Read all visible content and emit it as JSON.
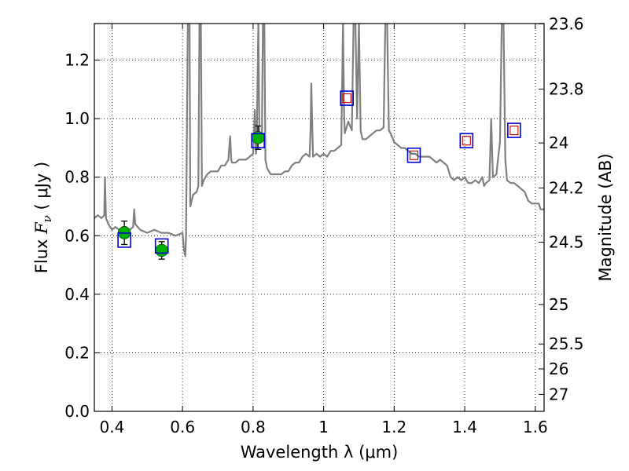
{
  "chart_data": {
    "type": "line",
    "xlabel": "Wavelength  λ (μm)",
    "ylabel_prefix": "Flux  ",
    "ylabel_math": "F",
    "ylabel_sub": "ν",
    "ylabel_suffix": "  ( μJy )",
    "ylabel_right": "Magnitude (AB)",
    "xlim": [
      0.35,
      1.625
    ],
    "ylim": [
      0.0,
      1.325
    ],
    "grid": true,
    "x_ticks": [
      0.4,
      0.6,
      0.8,
      1.0,
      1.2,
      1.4,
      1.6
    ],
    "x_tick_labels": [
      "0.4",
      "0.6",
      "0.8",
      "1",
      "1.2",
      "1.4",
      "1.6"
    ],
    "y_ticks": [
      0.0,
      0.2,
      0.4,
      0.6,
      0.8,
      1.0,
      1.2
    ],
    "y_tick_labels": [
      "0.0",
      "0.2",
      "0.4",
      "0.6",
      "0.8",
      "1.0",
      "1.2"
    ],
    "right_ticks": [
      {
        "label": "23.6",
        "flux": 1.324
      },
      {
        "label": "23.8",
        "flux": 1.101
      },
      {
        "label": "24",
        "flux": 0.917
      },
      {
        "label": "24.2",
        "flux": 0.763
      },
      {
        "label": "24.5",
        "flux": 0.578
      },
      {
        "label": "25",
        "flux": 0.365
      },
      {
        "label": "25.5",
        "flux": 0.23
      },
      {
        "label": "26",
        "flux": 0.145
      },
      {
        "label": "27",
        "flux": 0.058
      }
    ],
    "series": [
      {
        "name": "model_spectrum",
        "kind": "line",
        "color": "#808080",
        "points": [
          [
            0.35,
            0.66
          ],
          [
            0.36,
            0.67
          ],
          [
            0.37,
            0.66
          ],
          [
            0.378,
            0.67
          ],
          [
            0.38,
            0.8
          ],
          [
            0.383,
            0.66
          ],
          [
            0.39,
            0.64
          ],
          [
            0.4,
            0.62
          ],
          [
            0.41,
            0.63
          ],
          [
            0.42,
            0.62
          ],
          [
            0.43,
            0.63
          ],
          [
            0.44,
            0.63
          ],
          [
            0.45,
            0.62
          ],
          [
            0.46,
            0.63
          ],
          [
            0.463,
            0.69
          ],
          [
            0.466,
            0.64
          ],
          [
            0.48,
            0.62
          ],
          [
            0.5,
            0.61
          ],
          [
            0.52,
            0.62
          ],
          [
            0.54,
            0.61
          ],
          [
            0.56,
            0.61
          ],
          [
            0.58,
            0.6
          ],
          [
            0.6,
            0.61
          ],
          [
            0.604,
            0.55
          ],
          [
            0.608,
            0.53
          ],
          [
            0.61,
            0.6
          ],
          [
            0.615,
            1.33
          ],
          [
            0.62,
            1.33
          ],
          [
            0.622,
            0.7
          ],
          [
            0.63,
            0.74
          ],
          [
            0.64,
            0.75
          ],
          [
            0.645,
            0.77
          ],
          [
            0.648,
            1.33
          ],
          [
            0.652,
            1.33
          ],
          [
            0.655,
            0.77
          ],
          [
            0.66,
            0.79
          ],
          [
            0.67,
            0.81
          ],
          [
            0.68,
            0.82
          ],
          [
            0.69,
            0.82
          ],
          [
            0.7,
            0.82
          ],
          [
            0.71,
            0.84
          ],
          [
            0.72,
            0.84
          ],
          [
            0.73,
            0.86
          ],
          [
            0.735,
            0.94
          ],
          [
            0.738,
            0.86
          ],
          [
            0.74,
            0.85
          ],
          [
            0.75,
            0.85
          ],
          [
            0.76,
            0.86
          ],
          [
            0.77,
            0.86
          ],
          [
            0.78,
            0.86
          ],
          [
            0.79,
            0.87
          ],
          [
            0.8,
            0.88
          ],
          [
            0.805,
            1.03
          ],
          [
            0.808,
            0.88
          ],
          [
            0.81,
            0.9
          ],
          [
            0.815,
            1.33
          ],
          [
            0.818,
            0.92
          ],
          [
            0.82,
            0.92
          ],
          [
            0.825,
            0.93
          ],
          [
            0.828,
            1.33
          ],
          [
            0.832,
            1.33
          ],
          [
            0.835,
            0.86
          ],
          [
            0.84,
            0.83
          ],
          [
            0.85,
            0.81
          ],
          [
            0.86,
            0.81
          ],
          [
            0.87,
            0.81
          ],
          [
            0.88,
            0.81
          ],
          [
            0.89,
            0.82
          ],
          [
            0.9,
            0.82
          ],
          [
            0.91,
            0.84
          ],
          [
            0.92,
            0.85
          ],
          [
            0.93,
            0.85
          ],
          [
            0.94,
            0.87
          ],
          [
            0.95,
            0.88
          ],
          [
            0.96,
            0.87
          ],
          [
            0.963,
            0.96
          ],
          [
            0.965,
            1.12
          ],
          [
            0.968,
            0.96
          ],
          [
            0.97,
            0.87
          ],
          [
            0.98,
            0.88
          ],
          [
            0.99,
            0.87
          ],
          [
            1.0,
            0.88
          ],
          [
            1.01,
            0.87
          ],
          [
            1.02,
            0.89
          ],
          [
            1.03,
            0.89
          ],
          [
            1.04,
            0.9
          ],
          [
            1.05,
            0.91
          ],
          [
            1.055,
            1.33
          ],
          [
            1.058,
            1.02
          ],
          [
            1.06,
            0.95
          ],
          [
            1.07,
            0.99
          ],
          [
            1.08,
            0.96
          ],
          [
            1.085,
            1.33
          ],
          [
            1.09,
            1.33
          ],
          [
            1.095,
            1.0
          ],
          [
            1.1,
            1.33
          ],
          [
            1.105,
            0.96
          ],
          [
            1.11,
            0.93
          ],
          [
            1.12,
            0.93
          ],
          [
            1.13,
            0.94
          ],
          [
            1.14,
            0.95
          ],
          [
            1.15,
            0.96
          ],
          [
            1.16,
            0.96
          ],
          [
            1.17,
            0.97
          ],
          [
            1.175,
            1.33
          ],
          [
            1.18,
            1.33
          ],
          [
            1.185,
            0.96
          ],
          [
            1.19,
            0.95
          ],
          [
            1.2,
            0.92
          ],
          [
            1.21,
            0.91
          ],
          [
            1.22,
            0.9
          ],
          [
            1.23,
            0.9
          ],
          [
            1.24,
            0.89
          ],
          [
            1.25,
            0.88
          ],
          [
            1.26,
            0.88
          ],
          [
            1.27,
            0.87
          ],
          [
            1.28,
            0.87
          ],
          [
            1.29,
            0.87
          ],
          [
            1.3,
            0.87
          ],
          [
            1.31,
            0.86
          ],
          [
            1.32,
            0.85
          ],
          [
            1.33,
            0.86
          ],
          [
            1.34,
            0.85
          ],
          [
            1.35,
            0.84
          ],
          [
            1.36,
            0.8
          ],
          [
            1.37,
            0.79
          ],
          [
            1.38,
            0.8
          ],
          [
            1.39,
            0.79
          ],
          [
            1.4,
            0.8
          ],
          [
            1.41,
            0.78
          ],
          [
            1.42,
            0.78
          ],
          [
            1.43,
            0.79
          ],
          [
            1.44,
            0.78
          ],
          [
            1.45,
            0.8
          ],
          [
            1.455,
            0.77
          ],
          [
            1.46,
            0.78
          ],
          [
            1.47,
            0.79
          ],
          [
            1.475,
            1.0
          ],
          [
            1.48,
            0.8
          ],
          [
            1.49,
            0.81
          ],
          [
            1.495,
            0.87
          ],
          [
            1.5,
            0.92
          ],
          [
            1.505,
            1.33
          ],
          [
            1.51,
            1.33
          ],
          [
            1.515,
            0.86
          ],
          [
            1.52,
            0.79
          ],
          [
            1.53,
            0.78
          ],
          [
            1.54,
            0.78
          ],
          [
            1.55,
            0.77
          ],
          [
            1.56,
            0.76
          ],
          [
            1.57,
            0.75
          ],
          [
            1.58,
            0.72
          ],
          [
            1.59,
            0.71
          ],
          [
            1.6,
            0.71
          ],
          [
            1.61,
            0.71
          ],
          [
            1.615,
            0.69
          ],
          [
            1.62,
            0.69
          ],
          [
            1.625,
            0.69
          ]
        ]
      },
      {
        "name": "observed",
        "kind": "scatter",
        "marker": "circle",
        "color": "#00b000",
        "points": [
          {
            "x": 0.435,
            "y": 0.61,
            "yerr": 0.04
          },
          {
            "x": 0.541,
            "y": 0.55,
            "yerr": 0.03
          },
          {
            "x": 0.814,
            "y": 0.935,
            "yerr": 0.04
          }
        ]
      },
      {
        "name": "synthetic_blue",
        "kind": "scatter",
        "marker": "square",
        "color": "#0000dd",
        "points": [
          {
            "x": 0.435,
            "y": 0.585
          },
          {
            "x": 0.541,
            "y": 0.565
          },
          {
            "x": 0.814,
            "y": 0.925
          },
          {
            "x": 1.066,
            "y": 1.07
          },
          {
            "x": 1.256,
            "y": 0.875
          },
          {
            "x": 1.405,
            "y": 0.925
          },
          {
            "x": 1.54,
            "y": 0.96
          }
        ]
      },
      {
        "name": "synthetic_red",
        "kind": "scatter",
        "marker": "square_small",
        "color": "#cc0000",
        "points": [
          {
            "x": 1.066,
            "y": 1.07
          },
          {
            "x": 1.256,
            "y": 0.875
          },
          {
            "x": 1.405,
            "y": 0.925
          },
          {
            "x": 1.54,
            "y": 0.96
          }
        ]
      }
    ]
  }
}
